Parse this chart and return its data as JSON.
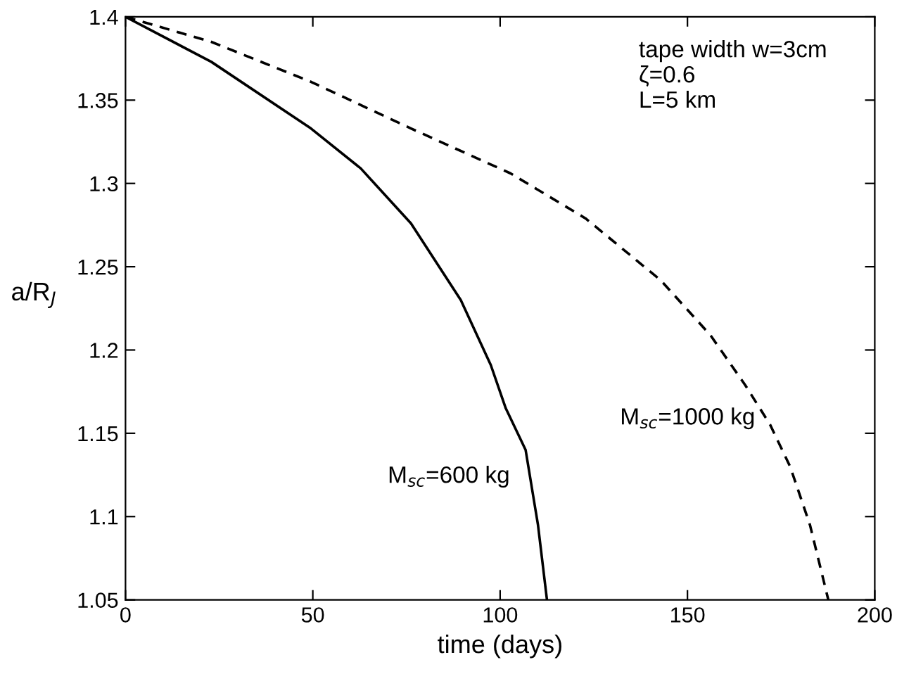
{
  "chart_data": {
    "type": "line",
    "xlabel": "time (days)",
    "ylabel": "a/R$_{J}$",
    "xlim": [
      0,
      200
    ],
    "xticks": [
      0,
      50,
      100,
      150,
      200
    ],
    "ylim": [
      1.05,
      1.4
    ],
    "yticks": [
      1.05,
      1.1,
      1.15,
      1.2,
      1.25,
      1.3,
      1.35,
      1.4
    ],
    "grid": false,
    "legend": false,
    "series": [
      {
        "color": "#000000",
        "line_style": "solid",
        "x": [
          0,
          22.9,
          49.5,
          62.8,
          76.2,
          89.5,
          97.5,
          101.5,
          106.8,
          110.1,
          112.5
        ],
        "values": [
          1.4,
          1.373,
          1.333,
          1.309,
          1.276,
          1.23,
          1.191,
          1.165,
          1.14,
          1.095,
          1.05
        ]
      },
      {
        "color": "#000000",
        "line_style": "dashed",
        "x": [
          0,
          22.9,
          49.5,
          76.2,
          102.8,
          122.8,
          142.8,
          156.1,
          165.4,
          172.1,
          177.4,
          182.7,
          187.6
        ],
        "values": [
          1.4,
          1.385,
          1.361,
          1.333,
          1.306,
          1.279,
          1.242,
          1.209,
          1.179,
          1.155,
          1.13,
          1.095,
          1.05
        ]
      }
    ],
    "annotations": [
      "tape width w=3cm\nζ=0.6\nL=5 km",
      "M$_{sc}$=600 kg",
      "M$_{sc}$=1000 kg"
    ]
  }
}
